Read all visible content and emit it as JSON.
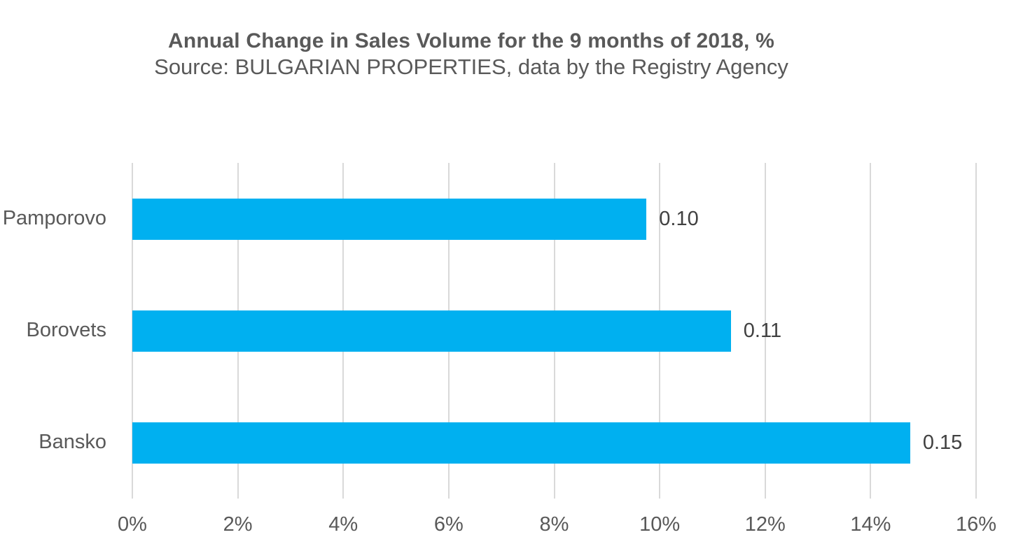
{
  "chart_data": {
    "type": "bar",
    "orientation": "horizontal",
    "title": "Annual Change in Sales Volume for the 9 months of 2018, %",
    "subtitle": "Source: BULGARIAN PROPERTIES, data by the Registry Agency",
    "categories": [
      "Pamporovo",
      "Borovets",
      "Bansko"
    ],
    "values_percent": [
      9.75,
      11.35,
      14.75
    ],
    "data_labels": [
      "0.10",
      "0.11",
      "0.15"
    ],
    "x_axis": {
      "min": 0,
      "max": 16,
      "step": 2,
      "tick_labels": [
        "0%",
        "2%",
        "4%",
        "6%",
        "8%",
        "10%",
        "12%",
        "14%",
        "16%"
      ]
    },
    "legend": "none",
    "grid": "vertical-gridlines",
    "colors": {
      "bar": "#00B0F0",
      "gridline": "#D9D9D9",
      "title_text": "#595959",
      "category_text": "#595959",
      "tick_text": "#595959",
      "data_label_text": "#404040"
    }
  }
}
